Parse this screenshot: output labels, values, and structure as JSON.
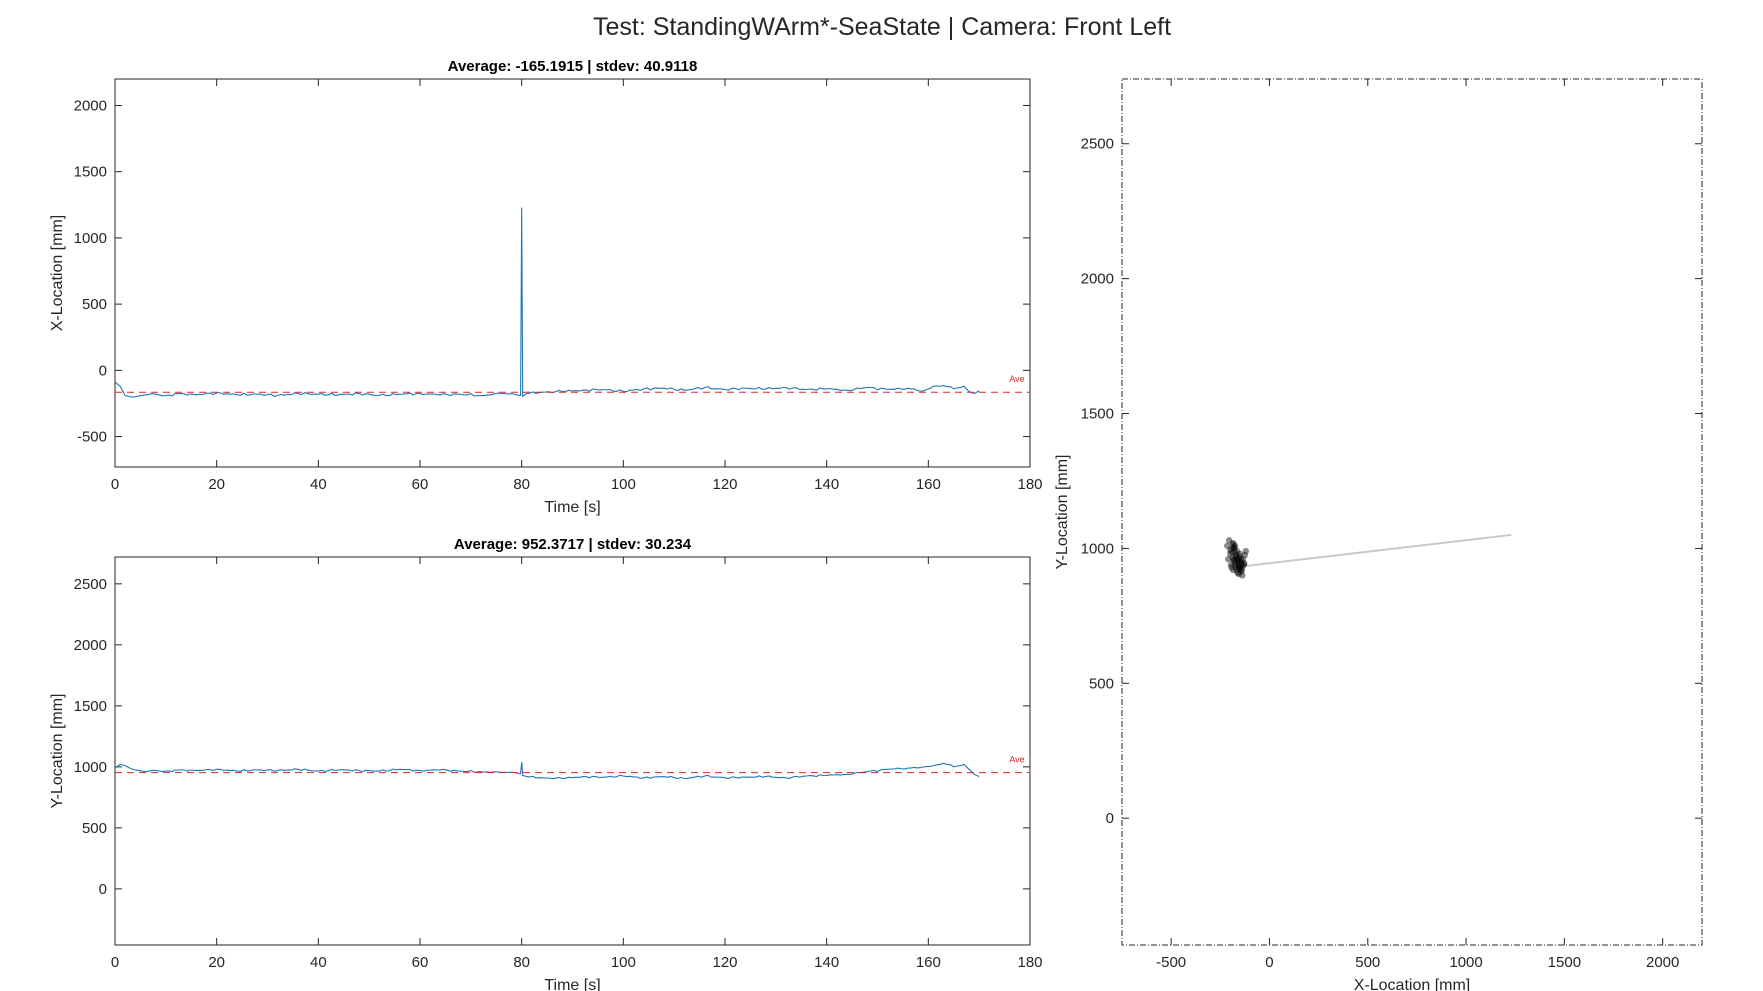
{
  "figure_title": "Test: StandingWArm*-SeaState  |  Camera: Front Left",
  "colors": {
    "series": "#1f77b4",
    "average_line": "#d62728",
    "trajectory": "#c8c8c8",
    "scatter": "#000000"
  },
  "chart_data": [
    {
      "type": "line",
      "title": "Average: -165.1915  |  stdev: 40.9118",
      "xlabel": "Time [s]",
      "ylabel": "X-Location [mm]",
      "xlim": [
        0,
        180
      ],
      "ylim": [
        -730,
        2200
      ],
      "xticks": [
        0,
        20,
        40,
        60,
        80,
        100,
        120,
        140,
        160,
        180
      ],
      "yticks": [
        -500,
        0,
        500,
        1000,
        1500,
        2000
      ],
      "grid": false,
      "average": -165.1915,
      "stdev": 40.9118,
      "average_label": "Ave",
      "series": [
        {
          "x": [
            0,
            1,
            2,
            4,
            6,
            8,
            10,
            13,
            16,
            20,
            24,
            28,
            32,
            36,
            40,
            44,
            48,
            52,
            56,
            60,
            64,
            68,
            72,
            76,
            79,
            79.8,
            80,
            80.2,
            81,
            84,
            88,
            92,
            96,
            100,
            104,
            108,
            112,
            116,
            120,
            124,
            128,
            132,
            136,
            140,
            144,
            148,
            152,
            156,
            159,
            161,
            163,
            165,
            167,
            168,
            169,
            170
          ],
          "y": [
            -90,
            -120,
            -190,
            -200,
            -185,
            -180,
            -190,
            -175,
            -185,
            -170,
            -185,
            -180,
            -190,
            -175,
            -180,
            -185,
            -175,
            -190,
            -180,
            -175,
            -185,
            -180,
            -190,
            -175,
            -185,
            -190,
            1230,
            -195,
            -175,
            -165,
            -160,
            -150,
            -145,
            -160,
            -140,
            -135,
            -150,
            -130,
            -145,
            -135,
            -140,
            -130,
            -145,
            -140,
            -150,
            -130,
            -145,
            -135,
            -155,
            -120,
            -115,
            -140,
            -120,
            -160,
            -175,
            -155
          ]
        }
      ]
    },
    {
      "type": "line",
      "title": "Average: 952.3717  |  stdev: 30.234",
      "xlabel": "Time [s]",
      "ylabel": "Y-Location [mm]",
      "xlim": [
        0,
        180
      ],
      "ylim": [
        -460,
        2720
      ],
      "xticks": [
        0,
        20,
        40,
        60,
        80,
        100,
        120,
        140,
        160,
        180
      ],
      "yticks": [
        0,
        500,
        1000,
        1500,
        2000,
        2500
      ],
      "grid": false,
      "average": 952.3717,
      "stdev": 30.234,
      "average_label": "Ave",
      "series": [
        {
          "x": [
            0,
            1,
            2,
            4,
            6,
            8,
            10,
            13,
            16,
            20,
            24,
            28,
            32,
            36,
            40,
            44,
            48,
            52,
            56,
            60,
            64,
            68,
            72,
            76,
            79,
            79.8,
            80,
            80.2,
            81,
            84,
            88,
            92,
            96,
            100,
            104,
            108,
            112,
            116,
            120,
            124,
            128,
            132,
            136,
            140,
            144,
            148,
            152,
            156,
            159,
            161,
            163,
            165,
            167,
            168,
            169,
            170
          ],
          "y": [
            990,
            1020,
            1010,
            975,
            960,
            970,
            965,
            975,
            970,
            980,
            965,
            975,
            970,
            980,
            965,
            975,
            970,
            965,
            980,
            970,
            975,
            965,
            960,
            955,
            950,
            945,
            1040,
            930,
            920,
            910,
            905,
            920,
            915,
            925,
            910,
            920,
            905,
            925,
            910,
            915,
            920,
            910,
            925,
            930,
            940,
            960,
            980,
            990,
            1000,
            1010,
            1030,
            1000,
            1020,
            980,
            940,
            920
          ]
        }
      ]
    },
    {
      "type": "scatter",
      "title": "",
      "xlabel": "X-Location [mm]",
      "ylabel": "Y-Location [mm]",
      "xlim": [
        -750,
        2200
      ],
      "ylim": [
        -470,
        2740
      ],
      "xticks": [
        -500,
        0,
        500,
        1000,
        1500,
        2000
      ],
      "yticks": [
        0,
        500,
        1000,
        1500,
        2000,
        2500
      ],
      "grid": false,
      "point_cluster": {
        "x": [
          -215,
          -205,
          -200,
          -190,
          -180,
          -175,
          -170,
          -165,
          -160,
          -155,
          -150,
          -145,
          -140,
          -135,
          -130,
          -125,
          -120,
          -210,
          -195,
          -185,
          -178,
          -168,
          -158,
          -148,
          -138,
          -128,
          -190,
          -182,
          -172,
          -162,
          -152,
          -142,
          -200,
          -188,
          -176,
          -166,
          -156,
          -146,
          -136,
          -186,
          -174,
          -164,
          -154,
          -144,
          -180,
          -170,
          -160,
          -150,
          -194,
          -184
        ],
        "y": [
          1010,
          1030,
          980,
          1000,
          960,
          1010,
          940,
          990,
          960,
          930,
          980,
          950,
          920,
          960,
          940,
          975,
          990,
          960,
          940,
          920,
          1000,
          970,
          950,
          925,
          900,
          945,
          985,
          955,
          930,
          910,
          970,
          940,
          995,
          965,
          945,
          920,
          905,
          960,
          935,
          1020,
          985,
          960,
          935,
          915,
          1005,
          975,
          950,
          925,
          930,
          1015
        ]
      },
      "trajectory": {
        "x": [
          -120,
          1230
        ],
        "y": [
          935,
          1050
        ]
      }
    }
  ]
}
